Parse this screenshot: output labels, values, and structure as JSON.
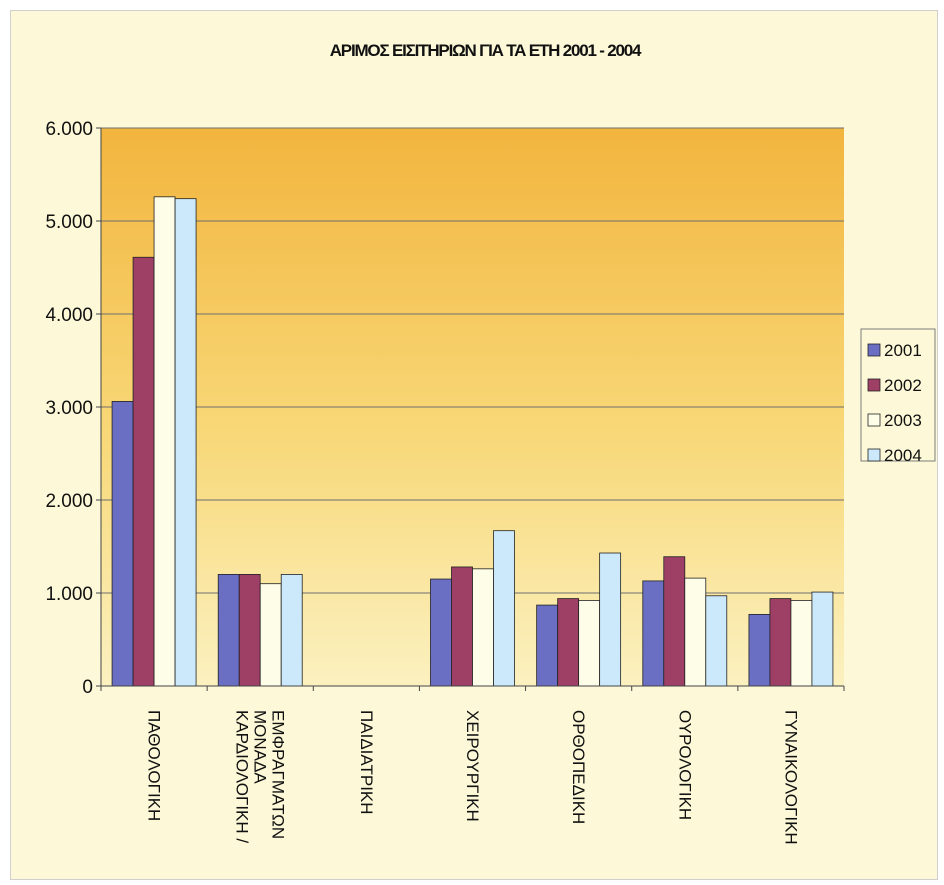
{
  "chart_data": {
    "type": "bar",
    "title": "ΑΡΙΜΟΣ ΕΙΣΙΤΗΡΙΩΝ ΓΙΑ ΤΑ ΕΤΗ 2001 - 2004",
    "xlabel": "",
    "ylabel": "",
    "ylim": [
      0,
      6000
    ],
    "yticks": [
      0,
      1000,
      2000,
      3000,
      4000,
      5000,
      6000
    ],
    "ytick_labels": [
      "0",
      "1.000",
      "2.000",
      "3.000",
      "4.000",
      "5.000",
      "6.000"
    ],
    "grid": true,
    "legend_position": "right",
    "categories": [
      [
        "ΠΑΘΟΛΟΓΙΚΗ"
      ],
      [
        "ΚΑΡΔΙΟΛΟΓΙΚΗ /",
        "ΜΟΝΑΔΑ",
        "ΕΜΦΡΑΓΜΑΤΩΝ"
      ],
      [
        "ΠΑΙΔΙΑΤΡΙΚΗ"
      ],
      [
        "ΧΕΙΡΟΥΡΓΙΚΗ"
      ],
      [
        "ΟΡΘΟΠΕΔΙΚΗ"
      ],
      [
        "ΟΥΡΟΛΟΓΙΚΗ"
      ],
      [
        "ΓΥΝΑΙΚΟΛΟΓΙΚΗ"
      ]
    ],
    "series": [
      {
        "name": "2001",
        "color": "#6a6fc4",
        "values": [
          3060,
          1200,
          0,
          1150,
          870,
          1130,
          770
        ]
      },
      {
        "name": "2002",
        "color": "#9e3f66",
        "values": [
          4610,
          1200,
          0,
          1280,
          940,
          1390,
          940
        ]
      },
      {
        "name": "2003",
        "color": "#fdfde8",
        "values": [
          5260,
          1100,
          0,
          1260,
          920,
          1160,
          920
        ]
      },
      {
        "name": "2004",
        "color": "#cbe9fb",
        "values": [
          5240,
          1200,
          0,
          1670,
          1430,
          970,
          1010
        ]
      }
    ]
  }
}
